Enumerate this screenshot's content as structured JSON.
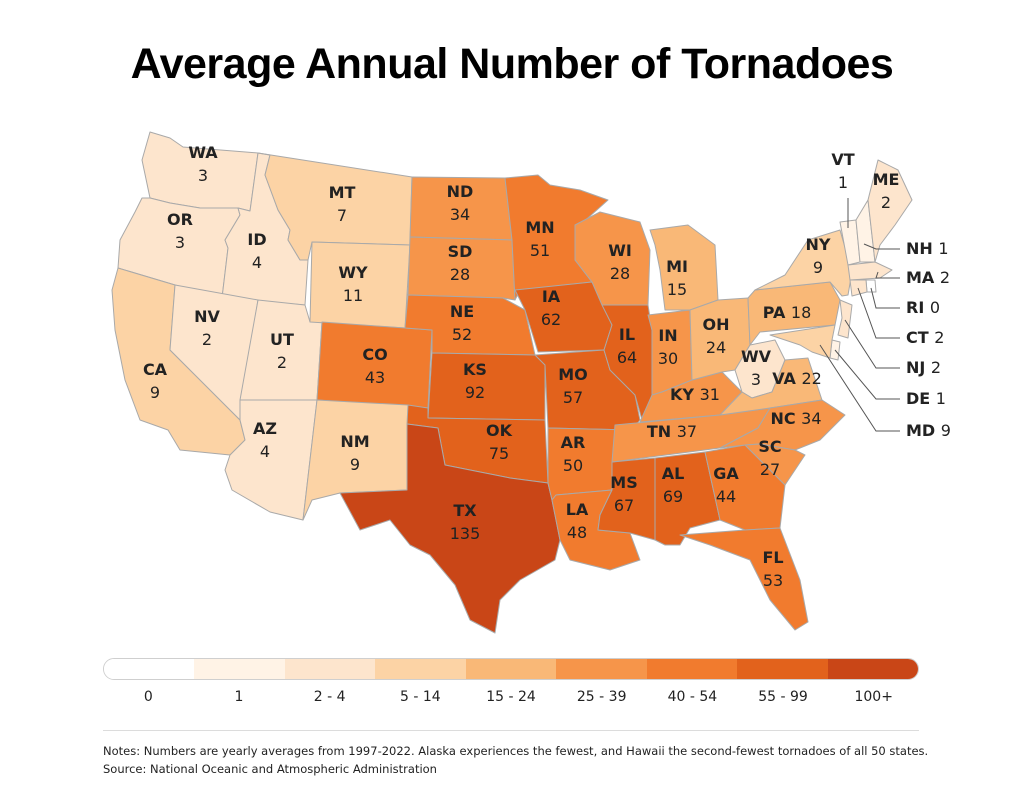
{
  "title": "Average Annual Number of Tornadoes",
  "bins": [
    {
      "label": "0",
      "color": "#ffffff"
    },
    {
      "label": "1",
      "color": "#fff3e6"
    },
    {
      "label": "2 - 4",
      "color": "#fde5cd"
    },
    {
      "label": "5 - 14",
      "color": "#fcd3a5"
    },
    {
      "label": "15 - 24",
      "color": "#f9b877"
    },
    {
      "label": "25 - 39",
      "color": "#f6954a"
    },
    {
      "label": "40 - 54",
      "color": "#f17b2e"
    },
    {
      "label": "55 - 99",
      "color": "#e2621c"
    },
    {
      "label": "100+",
      "color": "#c94617"
    }
  ],
  "states": {
    "WA": {
      "value": 3
    },
    "OR": {
      "value": 3
    },
    "CA": {
      "value": 9
    },
    "ID": {
      "value": 4
    },
    "NV": {
      "value": 2
    },
    "UT": {
      "value": 2
    },
    "AZ": {
      "value": 4
    },
    "MT": {
      "value": 7
    },
    "WY": {
      "value": 11
    },
    "CO": {
      "value": 43
    },
    "NM": {
      "value": 9
    },
    "ND": {
      "value": 34
    },
    "SD": {
      "value": 28
    },
    "NE": {
      "value": 52
    },
    "KS": {
      "value": 92
    },
    "OK": {
      "value": 75
    },
    "TX": {
      "value": 135
    },
    "MN": {
      "value": 51
    },
    "IA": {
      "value": 62
    },
    "MO": {
      "value": 57
    },
    "AR": {
      "value": 50
    },
    "LA": {
      "value": 48
    },
    "WI": {
      "value": 28
    },
    "IL": {
      "value": 64
    },
    "MS": {
      "value": 67
    },
    "MI": {
      "value": 15
    },
    "IN": {
      "value": 30
    },
    "KY": {
      "value": 31
    },
    "TN": {
      "value": 37
    },
    "AL": {
      "value": 69
    },
    "OH": {
      "value": 24
    },
    "GA": {
      "value": 44
    },
    "FL": {
      "value": 53
    },
    "WV": {
      "value": 3
    },
    "VA": {
      "value": 22
    },
    "NC": {
      "value": 34
    },
    "SC": {
      "value": 27
    },
    "PA": {
      "value": 18
    },
    "NY": {
      "value": 9
    },
    "VT": {
      "value": 1
    },
    "NH": {
      "value": 1
    },
    "ME": {
      "value": 2
    },
    "MA": {
      "value": 2
    },
    "RI": {
      "value": 0
    },
    "CT": {
      "value": 2
    },
    "NJ": {
      "value": 2
    },
    "DE": {
      "value": 1
    },
    "MD": {
      "value": 9
    }
  },
  "notes": "Notes: Numbers are yearly averages from 1997-2022. Alaska experiences the fewest, and Hawaii the second-fewest tornadoes of all 50 states.",
  "source": "Source: National Oceanic and Atmospheric Administration"
}
